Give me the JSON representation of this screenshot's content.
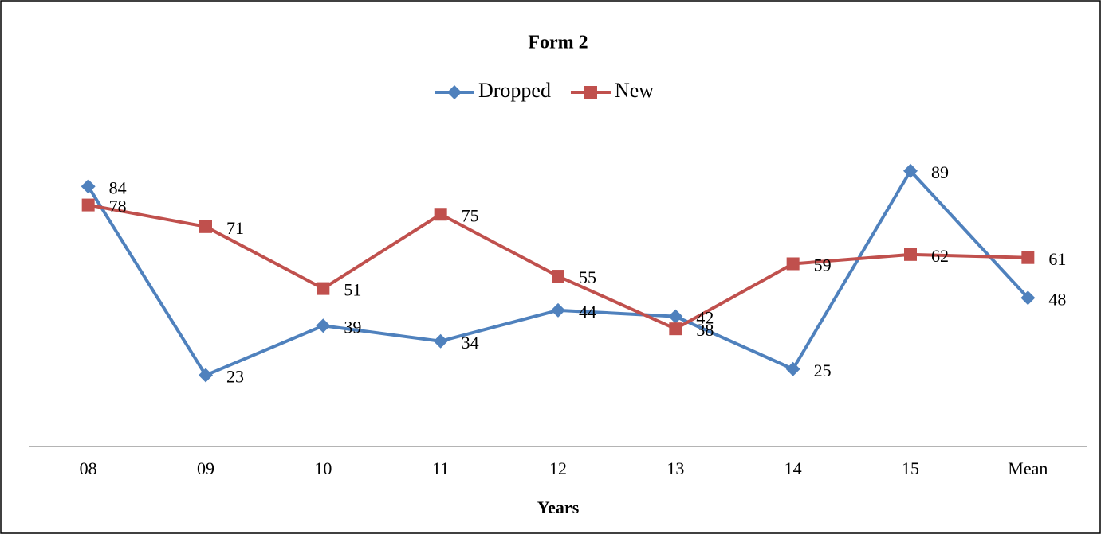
{
  "chart_data": {
    "type": "line",
    "title": "Form 2",
    "x_label": "Years",
    "categories": [
      "08",
      "09",
      "10",
      "11",
      "12",
      "13",
      "14",
      "15",
      "Mean"
    ],
    "series": [
      {
        "name": "Dropped",
        "color": "#4f81bd",
        "values": [
          84,
          23,
          39,
          34,
          44,
          42,
          25,
          89,
          48
        ]
      },
      {
        "name": "New",
        "color": "#c0504d",
        "values": [
          78,
          71,
          51,
          75,
          55,
          38,
          59,
          62,
          61
        ]
      }
    ],
    "ylim": [
      0,
      100
    ],
    "legend": "top"
  }
}
